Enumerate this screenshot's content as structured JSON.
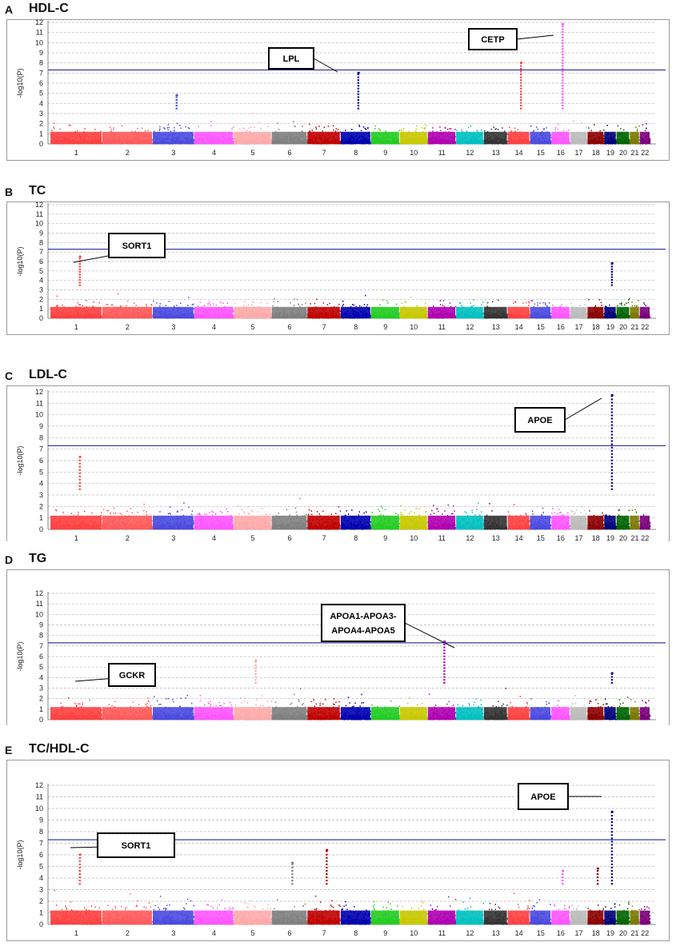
{
  "chart_data": [
    {
      "type": "scatter",
      "panel_label": "A",
      "title": "HDL-C",
      "ylabel": "-log10(P)",
      "ylim": [
        0,
        12
      ],
      "yticks": [
        0,
        1,
        2,
        3,
        4,
        5,
        6,
        7,
        8,
        9,
        10,
        11,
        12
      ],
      "threshold": 7.3,
      "chromosome_labels": [
        "1",
        "2",
        "3",
        "4",
        "5",
        "6",
        "7",
        "8",
        "9",
        "10",
        "11",
        "12",
        "13",
        "14",
        "15",
        "16",
        "17",
        "18",
        "19",
        "20",
        "21",
        "22"
      ],
      "peaks": [
        {
          "chromosome": "3",
          "max_log10p": 4.8
        },
        {
          "chromosome": "8",
          "max_log10p": 7.0
        },
        {
          "chromosome": "14",
          "max_log10p": 8.0
        },
        {
          "chromosome": "16",
          "max_log10p": 11.8
        }
      ],
      "annotations": [
        {
          "text": "LPL",
          "chromosome": "8"
        },
        {
          "text": "CETP",
          "chromosome": "16"
        }
      ]
    },
    {
      "type": "scatter",
      "panel_label": "B",
      "title": "TC",
      "ylabel": "-log10(P)",
      "ylim": [
        0,
        12
      ],
      "yticks": [
        0,
        1,
        2,
        3,
        4,
        5,
        6,
        7,
        8,
        9,
        10,
        11,
        12
      ],
      "threshold": 7.3,
      "chromosome_labels": [
        "1",
        "2",
        "3",
        "4",
        "5",
        "6",
        "7",
        "8",
        "9",
        "10",
        "11",
        "12",
        "13",
        "14",
        "15",
        "16",
        "17",
        "18",
        "19",
        "20",
        "21",
        "22"
      ],
      "peaks": [
        {
          "chromosome": "1",
          "max_log10p": 6.5
        },
        {
          "chromosome": "19",
          "max_log10p": 5.8
        }
      ],
      "annotations": [
        {
          "text": "SORT1",
          "chromosome": "1"
        }
      ]
    },
    {
      "type": "scatter",
      "panel_label": "C",
      "title": "LDL-C",
      "ylabel": "-log10(P)",
      "ylim": [
        0,
        12
      ],
      "yticks": [
        0,
        1,
        2,
        3,
        4,
        5,
        6,
        7,
        8,
        9,
        10,
        11,
        12
      ],
      "threshold": 7.3,
      "chromosome_labels": [
        "1",
        "2",
        "3",
        "4",
        "5",
        "6",
        "7",
        "8",
        "9",
        "10",
        "11",
        "12",
        "13",
        "14",
        "15",
        "16",
        "17",
        "18",
        "19",
        "20",
        "21",
        "22"
      ],
      "peaks": [
        {
          "chromosome": "1",
          "max_log10p": 6.3
        },
        {
          "chromosome": "19",
          "max_log10p": 11.7
        }
      ],
      "annotations": [
        {
          "text": "APOE",
          "chromosome": "19"
        }
      ]
    },
    {
      "type": "scatter",
      "panel_label": "D",
      "title": "TG",
      "ylabel": "-log10(P)",
      "ylim": [
        0,
        12
      ],
      "yticks": [
        0,
        1,
        2,
        3,
        4,
        5,
        6,
        7,
        8,
        9,
        10,
        11,
        12
      ],
      "threshold": 7.3,
      "chromosome_labels": [
        "1",
        "2",
        "3",
        "4",
        "5",
        "6",
        "7",
        "8",
        "9",
        "10",
        "11",
        "12",
        "13",
        "14",
        "15",
        "16",
        "17",
        "18",
        "19",
        "20",
        "21",
        "22"
      ],
      "peaks": [
        {
          "chromosome": "2",
          "max_log10p": 3.8
        },
        {
          "chromosome": "5",
          "max_log10p": 5.6
        },
        {
          "chromosome": "11",
          "max_log10p": 7.4
        },
        {
          "chromosome": "19",
          "max_log10p": 4.4
        }
      ],
      "annotations": [
        {
          "text": "APOA1-APOA3-",
          "text2": "APOA4-APOA5",
          "chromosome": "11"
        },
        {
          "text": "GCKR",
          "chromosome": "2"
        }
      ]
    },
    {
      "type": "scatter",
      "panel_label": "E",
      "title": "TC/HDL-C",
      "ylabel": "-log10(P)",
      "ylim": [
        0,
        12
      ],
      "yticks": [
        0,
        1,
        2,
        3,
        4,
        5,
        6,
        7,
        8,
        9,
        10,
        11,
        12
      ],
      "threshold": 7.3,
      "chromosome_labels": [
        "1",
        "2",
        "3",
        "4",
        "5",
        "6",
        "7",
        "8",
        "9",
        "10",
        "11",
        "12",
        "13",
        "14",
        "15",
        "16",
        "17",
        "18",
        "19",
        "20",
        "21",
        "22"
      ],
      "peaks": [
        {
          "chromosome": "1",
          "max_log10p": 6.0
        },
        {
          "chromosome": "6",
          "max_log10p": 5.3
        },
        {
          "chromosome": "7",
          "max_log10p": 6.4
        },
        {
          "chromosome": "16",
          "max_log10p": 4.6
        },
        {
          "chromosome": "18",
          "max_log10p": 4.8
        },
        {
          "chromosome": "19",
          "max_log10p": 9.7
        }
      ],
      "annotations": [
        {
          "text": "APOE",
          "chromosome": "19"
        },
        {
          "text": "SORT1",
          "chromosome": "1"
        }
      ]
    }
  ],
  "colors": {
    "threshold": "#3a3aa8",
    "grid": "#b8b8b8",
    "frame": "#9a9a9a",
    "chromosome_colors": [
      "#ff4040",
      "#ff5a5a",
      "#4a4ae0",
      "#ff55ff",
      "#ffaaaa",
      "#7f7f7f",
      "#c00000",
      "#0000b0",
      "#22cc22",
      "#c8c800",
      "#b000b0",
      "#00c0c0",
      "#333333",
      "#ff4040",
      "#4a4ae0",
      "#ff55ff",
      "#bbbbbb",
      "#8b0000",
      "#00007a",
      "#006400",
      "#7a7a00",
      "#7a007a"
    ]
  }
}
